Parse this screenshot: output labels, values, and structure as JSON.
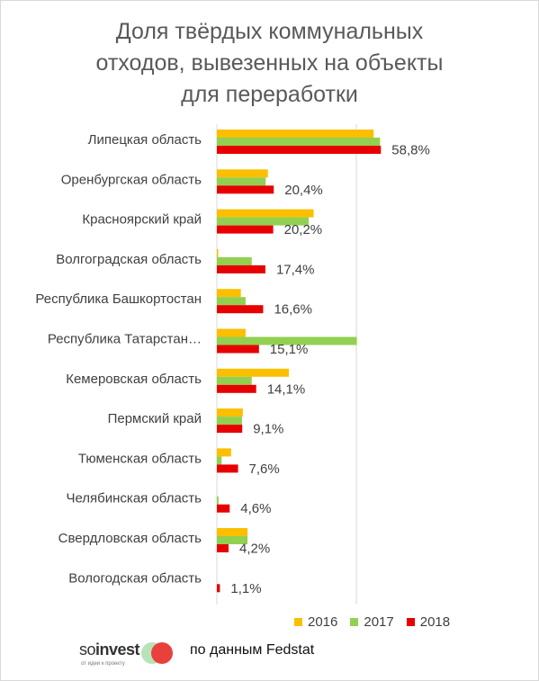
{
  "title_lines": [
    "Доля твёрдых коммунальных",
    "отходов, вывезенных на объекты",
    "для переработки"
  ],
  "colors": {
    "2016": "#fbbf00",
    "2017": "#92d050",
    "2018": "#e80000"
  },
  "chart_data": {
    "type": "bar",
    "orientation": "horizontal",
    "title": "Доля твёрдых коммунальных отходов, вывезенных на объекты для переработки",
    "categories": [
      "Липецкая область",
      "Оренбургская область",
      "Красноярский край",
      "Волгоградская область",
      "Республика Башкортостан",
      "Республика Татарстан…",
      "Кемеровская область",
      "Пермский край",
      "Тюменская область",
      "Челябинская область",
      "Свердловская область",
      "Вологодская область"
    ],
    "series": [
      {
        "name": "2016",
        "values": [
          56.2,
          18.3,
          34.7,
          0.5,
          8.6,
          10.3,
          25.8,
          9.3,
          5.1,
          0,
          11.0,
          0
        ]
      },
      {
        "name": "2017",
        "values": [
          58.5,
          17.5,
          32.9,
          12.5,
          10.3,
          50.2,
          12.5,
          9.0,
          1.7,
          0.6,
          11.0,
          0
        ]
      },
      {
        "name": "2018",
        "values": [
          58.8,
          20.4,
          20.2,
          17.4,
          16.6,
          15.1,
          14.1,
          9.1,
          7.6,
          4.6,
          4.2,
          1.1
        ]
      }
    ],
    "data_labels": [
      "58,8%",
      "20,4%",
      "20,2%",
      "17,4%",
      "16,6%",
      "15,1%",
      "14,1%",
      "9,1%",
      "7,6%",
      "4,6%",
      "4,2%",
      "1,1%"
    ],
    "xlim": [
      0,
      60
    ],
    "xgrid": [
      0,
      50
    ],
    "legend_position": "bottom-right",
    "legend": [
      "2016",
      "2017",
      "2018"
    ]
  },
  "logo": {
    "brand_part1": "so",
    "brand_part2": "invest",
    "tagline": "от идеи к проекту"
  },
  "source_note": "по данным Fedstat"
}
